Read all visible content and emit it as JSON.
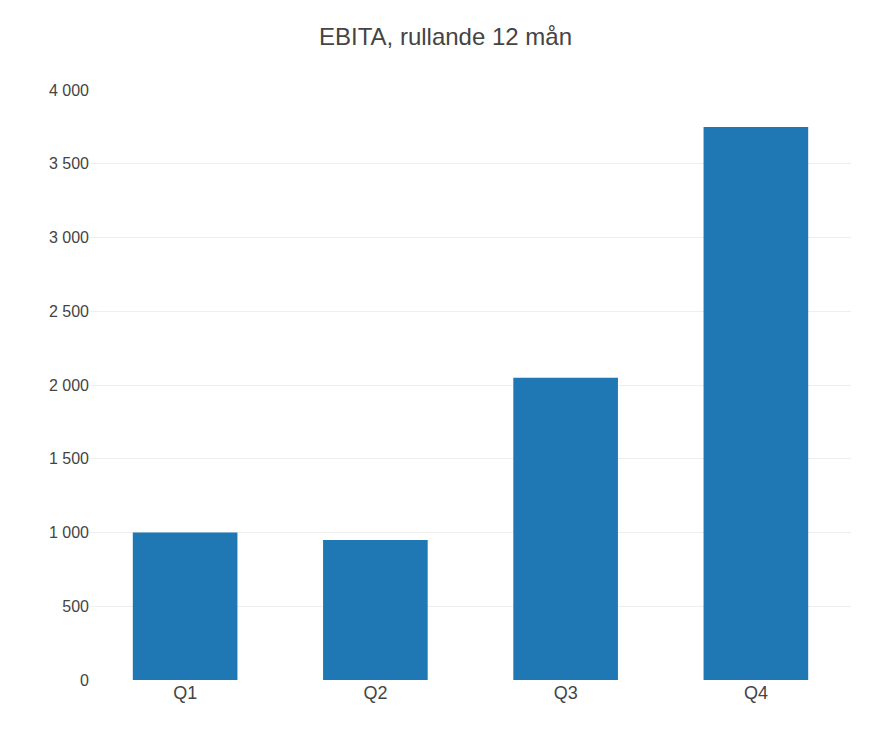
{
  "chart_data": {
    "type": "bar",
    "title": "EBITA, rullande 12 mån",
    "categories": [
      "Q1",
      "Q2",
      "Q3",
      "Q4"
    ],
    "values": [
      1000,
      950,
      2050,
      3750
    ],
    "ylim": [
      0,
      4000
    ],
    "yticks": [
      0,
      500,
      {
        "value": 1000,
        "label": "1 000"
      },
      {
        "value": 1500,
        "label": "1 500"
      },
      {
        "value": 2000,
        "label": "2 000"
      },
      {
        "value": 2500,
        "label": "2 500"
      },
      {
        "value": 3000,
        "label": "3 000"
      },
      {
        "value": 3500,
        "label": "3 500"
      },
      {
        "value": 4000,
        "label": "4 000"
      }
    ],
    "grid": true
  }
}
